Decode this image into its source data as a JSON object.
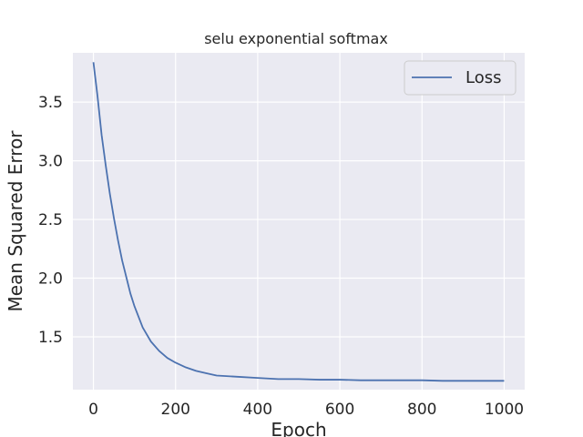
{
  "chart_data": {
    "type": "line",
    "title": "selu exponential softmax",
    "xlabel": "Epoch",
    "ylabel": "Mean Squared Error",
    "xlim": [
      -50,
      1050
    ],
    "ylim": [
      1.05,
      3.92
    ],
    "xticks": [
      0,
      200,
      400,
      600,
      800,
      1000
    ],
    "yticks": [
      1.5,
      2.0,
      2.5,
      3.0,
      3.5
    ],
    "xtick_labels": [
      "0",
      "200",
      "400",
      "600",
      "800",
      "1000"
    ],
    "ytick_labels": [
      "1.5",
      "2.0",
      "2.5",
      "3.0",
      "3.5"
    ],
    "grid": true,
    "legend_position": "top-right",
    "series": [
      {
        "name": "Loss",
        "color": "#4c72b0",
        "x": [
          0,
          10,
          20,
          30,
          40,
          50,
          60,
          70,
          80,
          90,
          100,
          120,
          140,
          160,
          180,
          200,
          225,
          250,
          275,
          300,
          350,
          400,
          450,
          500,
          550,
          600,
          650,
          700,
          750,
          800,
          850,
          900,
          950,
          1000
        ],
        "y": [
          3.84,
          3.55,
          3.22,
          2.96,
          2.72,
          2.51,
          2.32,
          2.15,
          2.01,
          1.87,
          1.76,
          1.58,
          1.46,
          1.38,
          1.32,
          1.28,
          1.24,
          1.21,
          1.19,
          1.17,
          1.16,
          1.15,
          1.14,
          1.14,
          1.135,
          1.135,
          1.13,
          1.13,
          1.13,
          1.13,
          1.125,
          1.125,
          1.125,
          1.125
        ]
      }
    ]
  }
}
